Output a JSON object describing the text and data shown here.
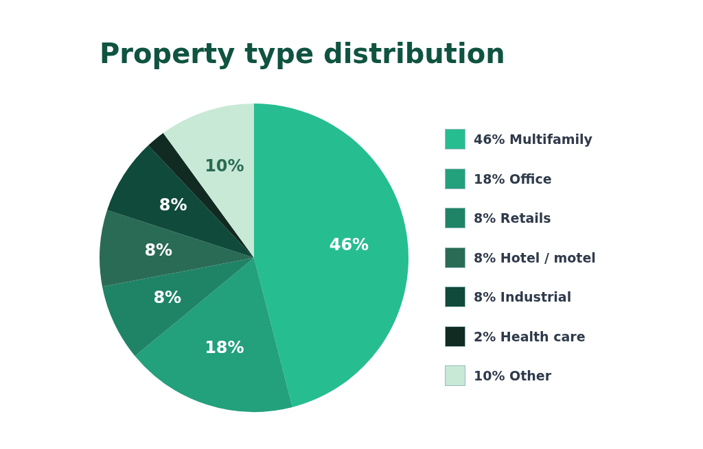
{
  "chart_data": {
    "type": "pie",
    "title": "Property type distribution",
    "categories": [
      "46% Multifamily",
      "18% Office",
      "8% Retails",
      "8% Hotel / motel",
      "8% Industrial",
      "2% Health care",
      "10% Other"
    ],
    "values": [
      46,
      18,
      8,
      8,
      8,
      2,
      10
    ],
    "colors": [
      "#26bd91",
      "#23a07c",
      "#1f8466",
      "#2a6b55",
      "#0f4a3a",
      "#112a22",
      "#c8e9d6"
    ],
    "value_labels": [
      "46%",
      "18%",
      "8%",
      "8%",
      "8%",
      null,
      "10%"
    ],
    "legend": "right"
  }
}
